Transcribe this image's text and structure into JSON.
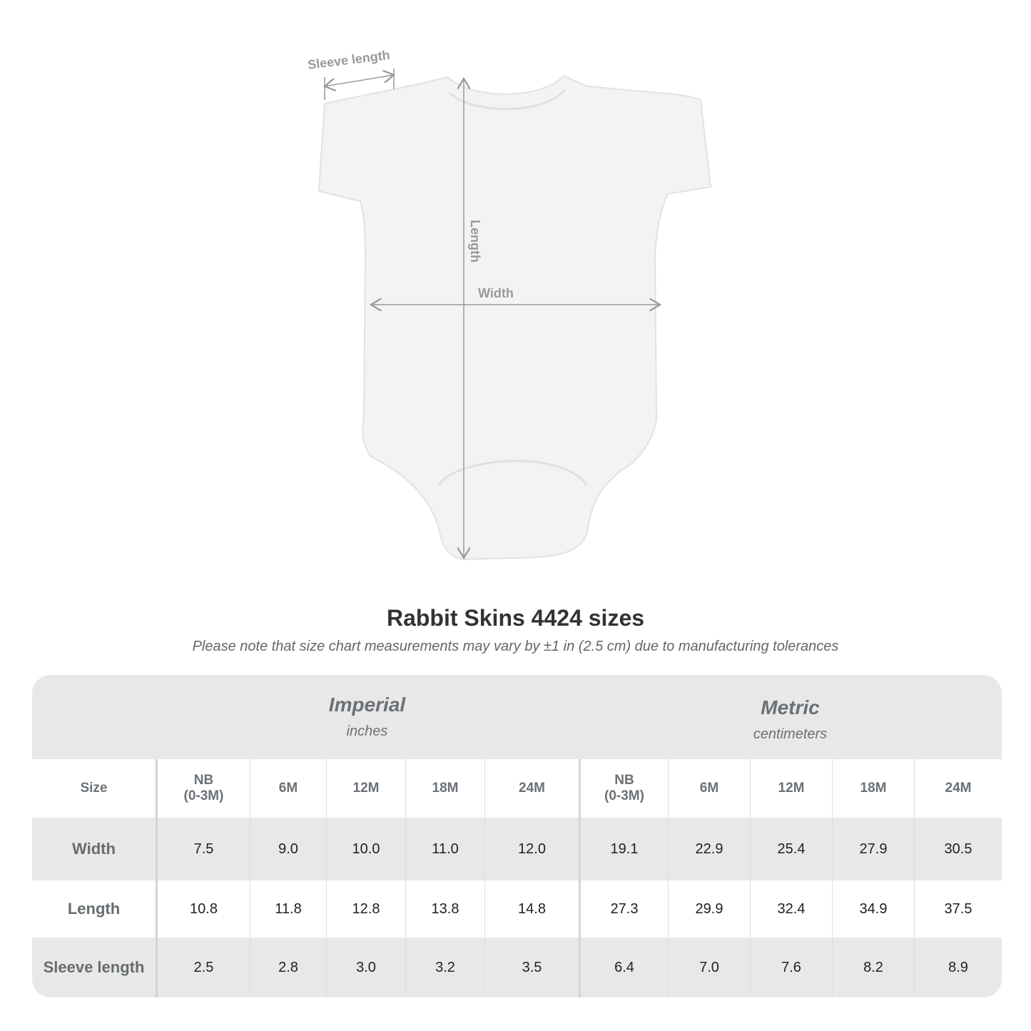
{
  "diagram": {
    "labels": {
      "sleeve": "Sleeve length",
      "length": "Length",
      "width": "Width"
    }
  },
  "title": "Rabbit Skins 4424 sizes",
  "subtitle": "Please note that size chart measurements may vary by ±1 in (2.5 cm) due to manufacturing tolerances",
  "table": {
    "imperial": {
      "system": "Imperial",
      "unit": "inches"
    },
    "metric": {
      "system": "Metric",
      "unit": "centimeters"
    },
    "size_label": "Size",
    "sizes": [
      "NB\n(0-3M)",
      "6M",
      "12M",
      "18M",
      "24M",
      "NB\n(0-3M)",
      "6M",
      "12M",
      "18M",
      "24M"
    ],
    "rows": [
      {
        "label": "Width",
        "values": [
          "7.5",
          "9.0",
          "10.0",
          "11.0",
          "12.0",
          "19.1",
          "22.9",
          "25.4",
          "27.9",
          "30.5"
        ]
      },
      {
        "label": "Length",
        "values": [
          "10.8",
          "11.8",
          "12.8",
          "13.8",
          "14.8",
          "27.3",
          "29.9",
          "32.4",
          "34.9",
          "37.5"
        ]
      },
      {
        "label": "Sleeve length",
        "values": [
          "2.5",
          "2.8",
          "3.0",
          "3.2",
          "3.5",
          "6.4",
          "7.0",
          "7.6",
          "8.2",
          "8.9"
        ]
      }
    ]
  }
}
